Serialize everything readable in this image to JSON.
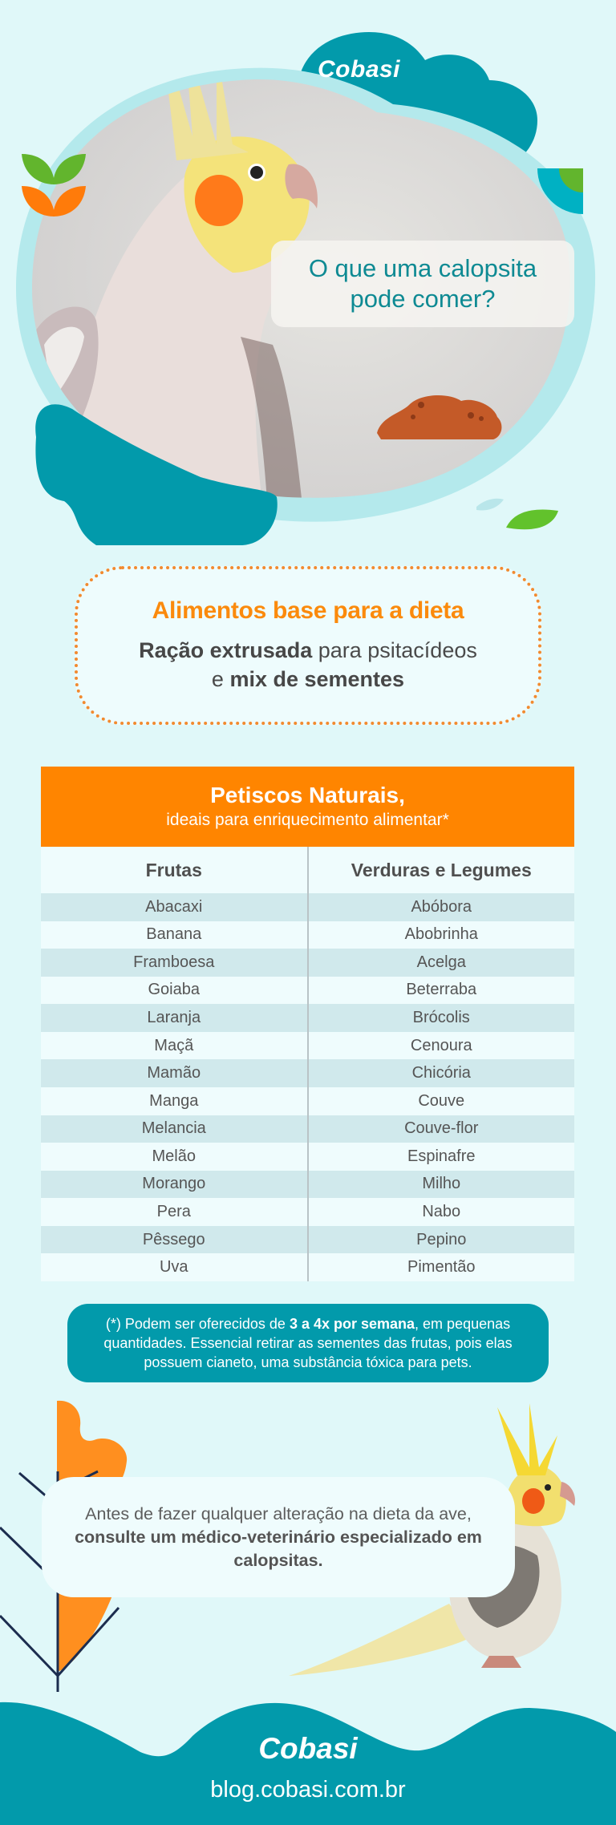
{
  "hero": {
    "brand": "Cobasi",
    "title_line1": "O que uma calopsita",
    "title_line2": "pode comer?"
  },
  "base_foods": {
    "title": "Alimentos base para a dieta",
    "line1_bold": "Ração extrusada",
    "line1_rest": " para psitacídeos",
    "line2_pre": "e ",
    "line2_bold": "mix de sementes"
  },
  "table": {
    "title": "Petiscos Naturais,",
    "subtitle": "ideais para enriquecimento alimentar*",
    "columns": [
      "Frutas",
      "Verduras e Legumes"
    ],
    "frutas": [
      "Abacaxi",
      "Banana",
      "Framboesa",
      "Goiaba",
      "Laranja",
      "Maçã",
      "Mamão",
      "Manga",
      "Melancia",
      "Melão",
      "Morango",
      "Pera",
      "Pêssego",
      "Uva"
    ],
    "verduras": [
      "Abóbora",
      "Abobrinha",
      "Acelga",
      "Beterraba",
      "Brócolis",
      "Cenoura",
      "Chicória",
      "Couve",
      "Couve-flor",
      "Espinafre",
      "Milho",
      "Nabo",
      "Pepino",
      "Pimentão"
    ]
  },
  "footnote": {
    "pre": "(*) Podem ser oferecidos de ",
    "bold": "3 a 4x por semana",
    "post": ", em pequenas quantidades. Essencial retirar as sementes das frutas, pois elas possuem cianeto, uma substância tóxica para pets."
  },
  "warning": {
    "pre": "Antes de fazer qualquer alteração na dieta da ave, ",
    "bold": "consulte um médico-veterinário especializado em calopsitas."
  },
  "footer": {
    "brand": "Cobasi",
    "url": "blog.cobasi.com.br"
  },
  "colors": {
    "background": "#e0f8f9",
    "teal": "#029aab",
    "orange": "#ff8500",
    "green": "#62b52d",
    "title_teal": "#0e8a93"
  }
}
